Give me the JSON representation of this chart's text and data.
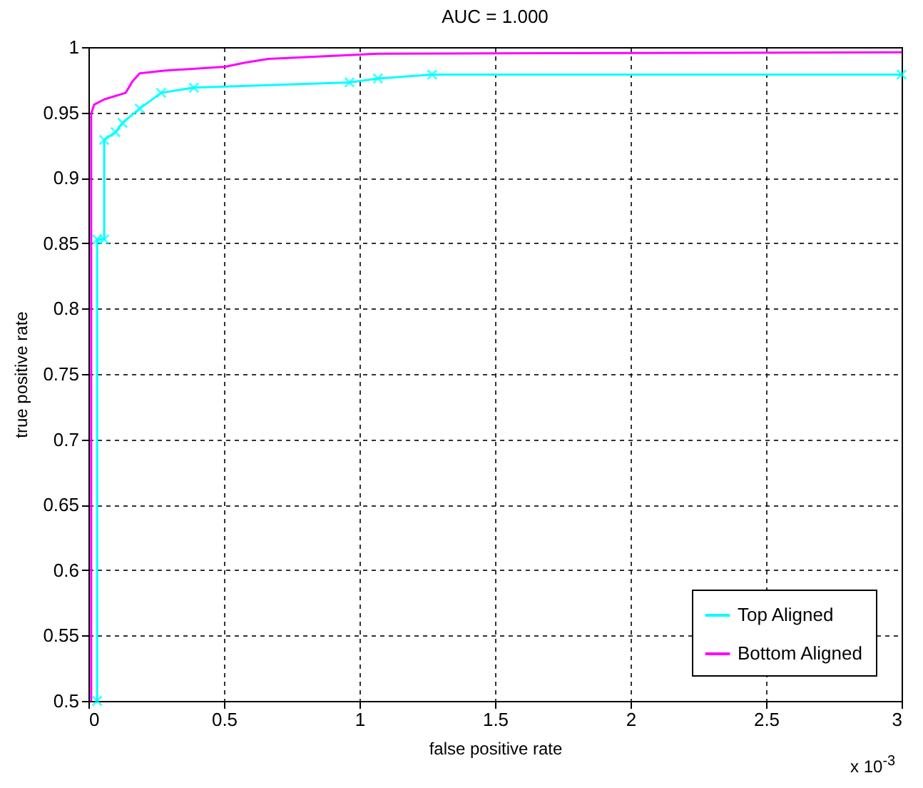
{
  "chart_data": {
    "type": "line",
    "title": "AUC = 1.000",
    "xlabel": "false positive rate",
    "ylabel": "true positive rate",
    "annotations": [
      "x 10$^{-3}$"
    ],
    "xlim": [
      0,
      3
    ],
    "xticks": [
      0,
      0.5,
      1,
      1.5,
      2,
      2.5,
      3
    ],
    "ylim": [
      0.5,
      1
    ],
    "yticks": [
      0.5,
      0.55,
      0.6,
      0.65,
      0.7,
      0.75,
      0.8,
      0.85,
      0.9,
      0.95,
      1
    ],
    "grid": true,
    "legend": "bottom right",
    "series": [
      {
        "name": "Top Aligned",
        "color": "#00ffff",
        "marker": "cross",
        "x": [
          0.032,
          0.032,
          0.058,
          0.058,
          0.1,
          0.126,
          0.189,
          0.268,
          0.389,
          0.963,
          1.068,
          1.268,
          3
        ],
        "values": [
          0.5,
          0.853,
          0.853,
          0.929,
          0.935,
          0.942,
          0.953,
          0.965,
          0.969,
          0.973,
          0.976,
          0.979,
          0.979
        ]
      },
      {
        "name": "Bottom Aligned",
        "color": "#ff00ff",
        "x": [
          0.01,
          0.01,
          0.021,
          0.058,
          0.137,
          0.163,
          0.189,
          0.279,
          0.505,
          0.574,
          0.663,
          0.874,
          1.068,
          3
        ],
        "values": [
          0.5,
          0.949,
          0.956,
          0.96,
          0.965,
          0.974,
          0.98,
          0.982,
          0.985,
          0.988,
          0.991,
          0.993,
          0.995,
          0.996
        ]
      }
    ]
  }
}
